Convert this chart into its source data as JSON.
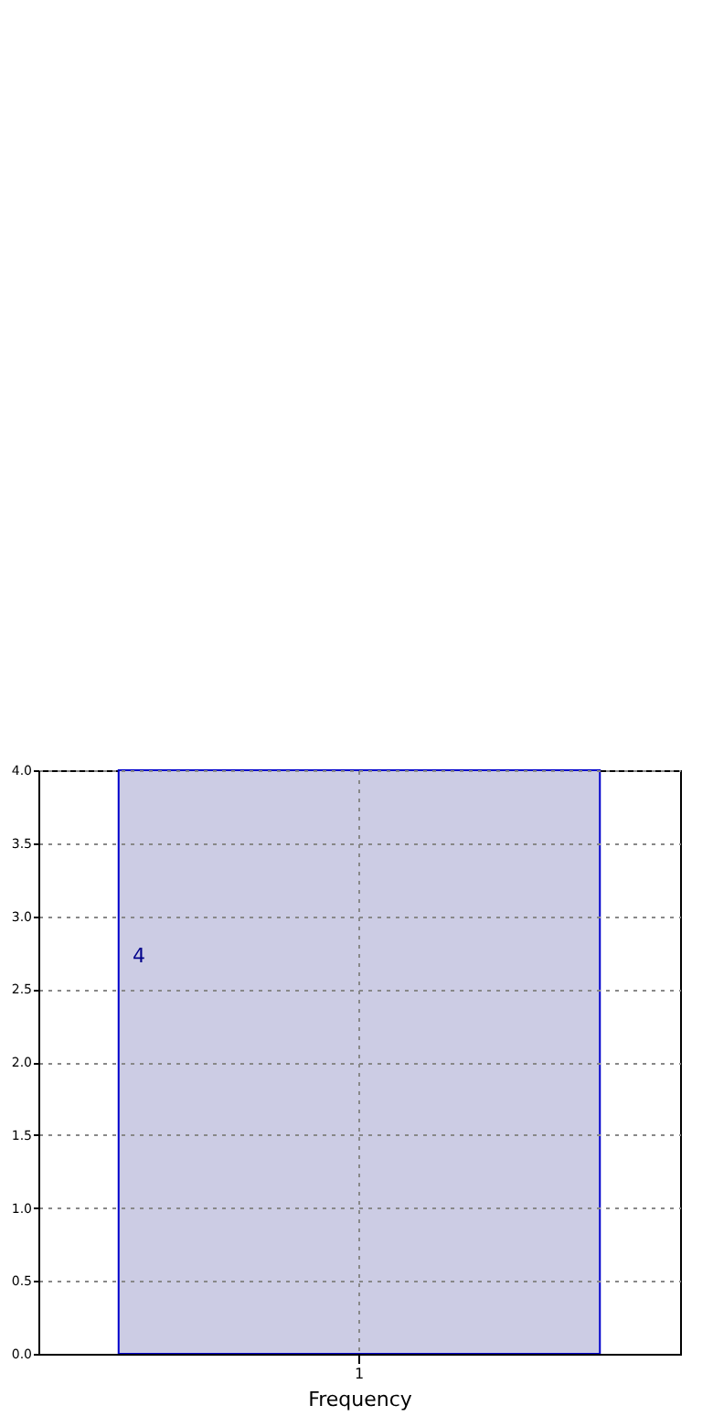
{
  "chart_data": {
    "type": "bar",
    "xlabel": "Frequency",
    "categories": [
      "1"
    ],
    "values": [
      4
    ],
    "color": "#ccccE4",
    "ylim": [
      0,
      4
    ],
    "yticks": [
      {
        "value": 0,
        "label": "0.0"
      },
      {
        "value": 0.5,
        "label": "0.5"
      },
      {
        "value": 1,
        "label": "1.0"
      },
      {
        "value": 1.5,
        "label": "1.5"
      },
      {
        "value": 2,
        "label": "2.0"
      },
      {
        "value": 2.5,
        "label": "2.5"
      },
      {
        "value": 3,
        "label": "3.0"
      },
      {
        "value": 3.5,
        "label": "3.5"
      },
      {
        "value": 4,
        "label": "4.0"
      }
    ],
    "grid": true,
    "data_labels": true
  }
}
